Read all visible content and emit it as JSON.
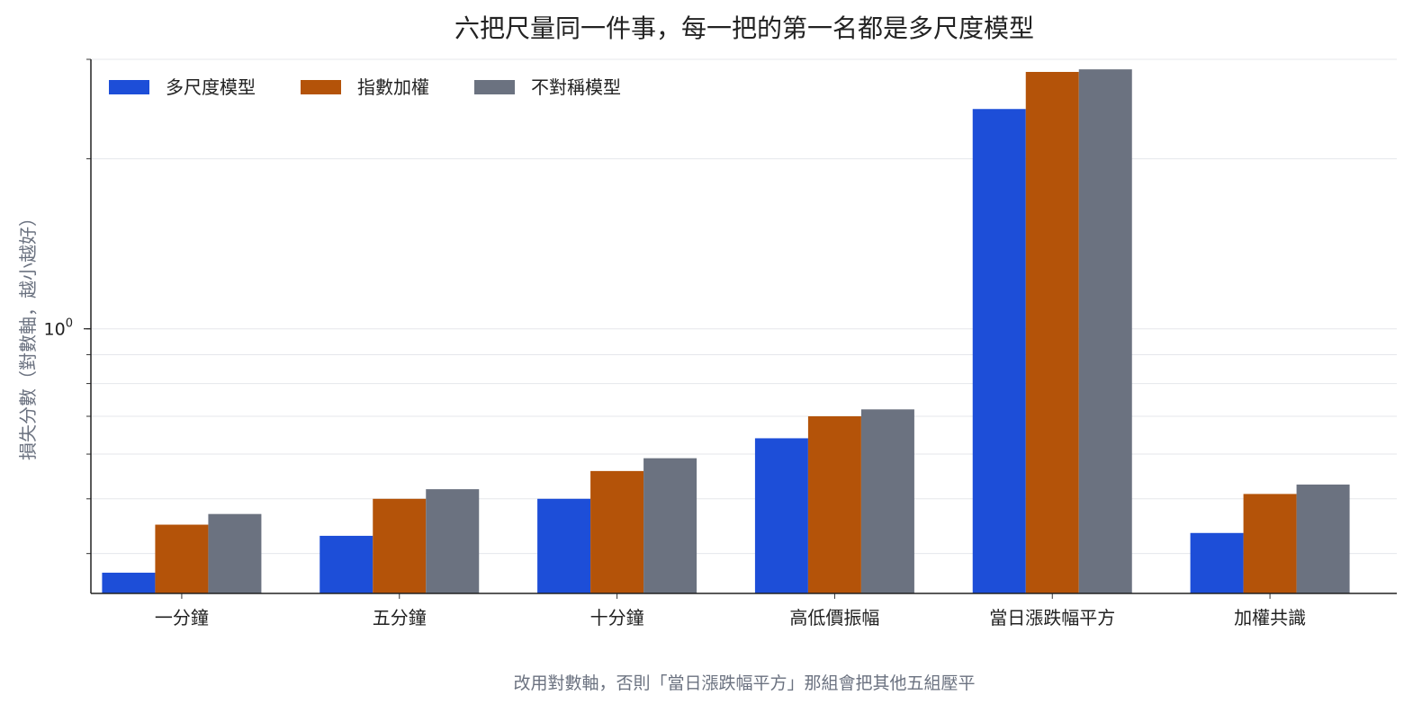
{
  "chart_data": {
    "type": "bar",
    "title": "六把尺量同一件事，每一把的第一名都是多尺度模型",
    "caption": "改用對數軸，否則「當日漲跌幅平方」那組會把其他五組壓平",
    "ylabel": "損失分數（對數軸，越小越好）",
    "yscale": "log",
    "ylim": [
      0.34,
      3.0
    ],
    "y_tick_labels": [
      {
        "base": "10",
        "exp": "0",
        "value": 1.0
      }
    ],
    "grid": true,
    "legend_position": "top-left",
    "categories": [
      "一分鐘",
      "五分鐘",
      "十分鐘",
      "高低價振幅",
      "當日漲跌幅平方",
      "加權共識"
    ],
    "series": [
      {
        "name": "多尺度模型",
        "color": "#1d4ed8",
        "values": [
          0.37,
          0.43,
          0.5,
          0.64,
          2.45,
          0.435
        ]
      },
      {
        "name": "指數加權",
        "color": "#b45309",
        "values": [
          0.45,
          0.5,
          0.56,
          0.7,
          2.85,
          0.51
        ]
      },
      {
        "name": "不對稱模型",
        "color": "#6b7280",
        "values": [
          0.47,
          0.52,
          0.59,
          0.72,
          2.88,
          0.53
        ]
      }
    ]
  }
}
